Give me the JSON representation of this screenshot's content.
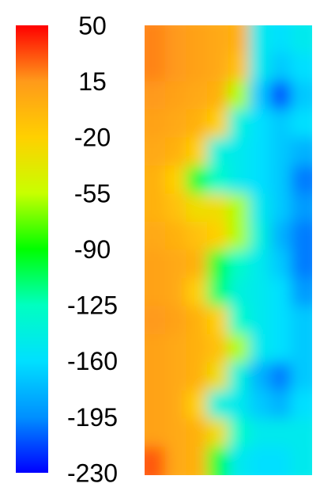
{
  "chart_data": {
    "type": "contour",
    "clim": [
      -230,
      50
    ],
    "cticks": [
      50,
      15,
      -20,
      -55,
      -90,
      -125,
      -160,
      -195,
      -230
    ],
    "colors": [
      "#0000ff",
      "#0090ff",
      "#00e0ff",
      "#00ffc0",
      "#00ff00",
      "#c8ff00",
      "#ffd000",
      "#ff9a1a",
      "#ff0000"
    ],
    "z": [
      [
        20,
        15,
        10,
        5,
        0,
        -150,
        -160,
        -150
      ],
      [
        20,
        15,
        10,
        5,
        -10,
        -150,
        -170,
        -160
      ],
      [
        15,
        10,
        5,
        0,
        -60,
        -170,
        -210,
        -170
      ],
      [
        10,
        5,
        0,
        -20,
        -140,
        -160,
        -170,
        -160
      ],
      [
        5,
        0,
        -20,
        -140,
        -150,
        -160,
        -170,
        -180
      ],
      [
        0,
        -20,
        -100,
        -130,
        -150,
        -160,
        -170,
        -200
      ],
      [
        0,
        -10,
        -30,
        -30,
        -60,
        -150,
        -170,
        -190
      ],
      [
        5,
        0,
        -10,
        -20,
        -60,
        -140,
        -180,
        -200
      ],
      [
        10,
        5,
        0,
        -100,
        -130,
        -150,
        -170,
        -200
      ],
      [
        10,
        5,
        -20,
        -110,
        -140,
        -150,
        -160,
        -190
      ],
      [
        15,
        10,
        0,
        -20,
        -130,
        -150,
        -160,
        -170
      ],
      [
        10,
        5,
        0,
        -10,
        -60,
        -150,
        -160,
        -170
      ],
      [
        10,
        5,
        0,
        -30,
        -140,
        -180,
        -200,
        -170
      ],
      [
        10,
        5,
        -20,
        -140,
        -150,
        -170,
        -180,
        -160
      ],
      [
        10,
        5,
        0,
        -30,
        -130,
        -150,
        -150,
        -150
      ],
      [
        30,
        5,
        0,
        -100,
        -150,
        -160,
        -160,
        -150
      ]
    ]
  }
}
